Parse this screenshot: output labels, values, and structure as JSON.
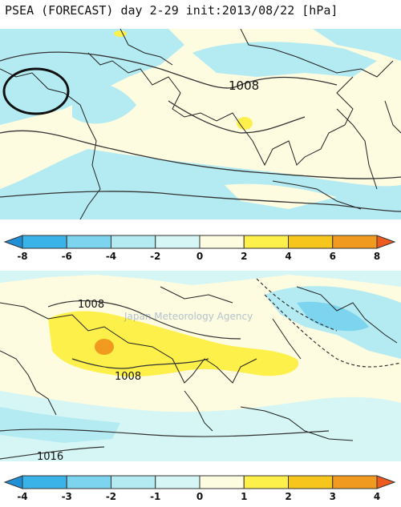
{
  "header": {
    "title": "PSEA (FORECAST) day 2-29 init:2013/08/22  [hPa]"
  },
  "watermark": "Japan Meteorology Agency",
  "top_panel": {
    "contour_labels": [
      "1008"
    ],
    "colorbar": {
      "ticks": [
        "-8",
        "-6",
        "-4",
        "-2",
        "0",
        "2",
        "4",
        "6",
        "8"
      ],
      "colors": [
        "#1f8fd6",
        "#3ab4e8",
        "#7cd4ee",
        "#b4ebf2",
        "#d6f5f5",
        "#fdfbe0",
        "#fdf04a",
        "#f7c61c",
        "#f09a20",
        "#f05a1e"
      ]
    }
  },
  "bottom_panel": {
    "contour_labels": [
      "1008",
      "1008",
      "1016"
    ],
    "colorbar": {
      "ticks": [
        "-4",
        "-3",
        "-2",
        "-1",
        "0",
        "1",
        "2",
        "3",
        "4"
      ],
      "colors": [
        "#1f8fd6",
        "#3ab4e8",
        "#7cd4ee",
        "#b4ebf2",
        "#d6f5f5",
        "#fdfbe0",
        "#fdf04a",
        "#f7c61c",
        "#f09a20",
        "#f05a1e"
      ]
    }
  }
}
